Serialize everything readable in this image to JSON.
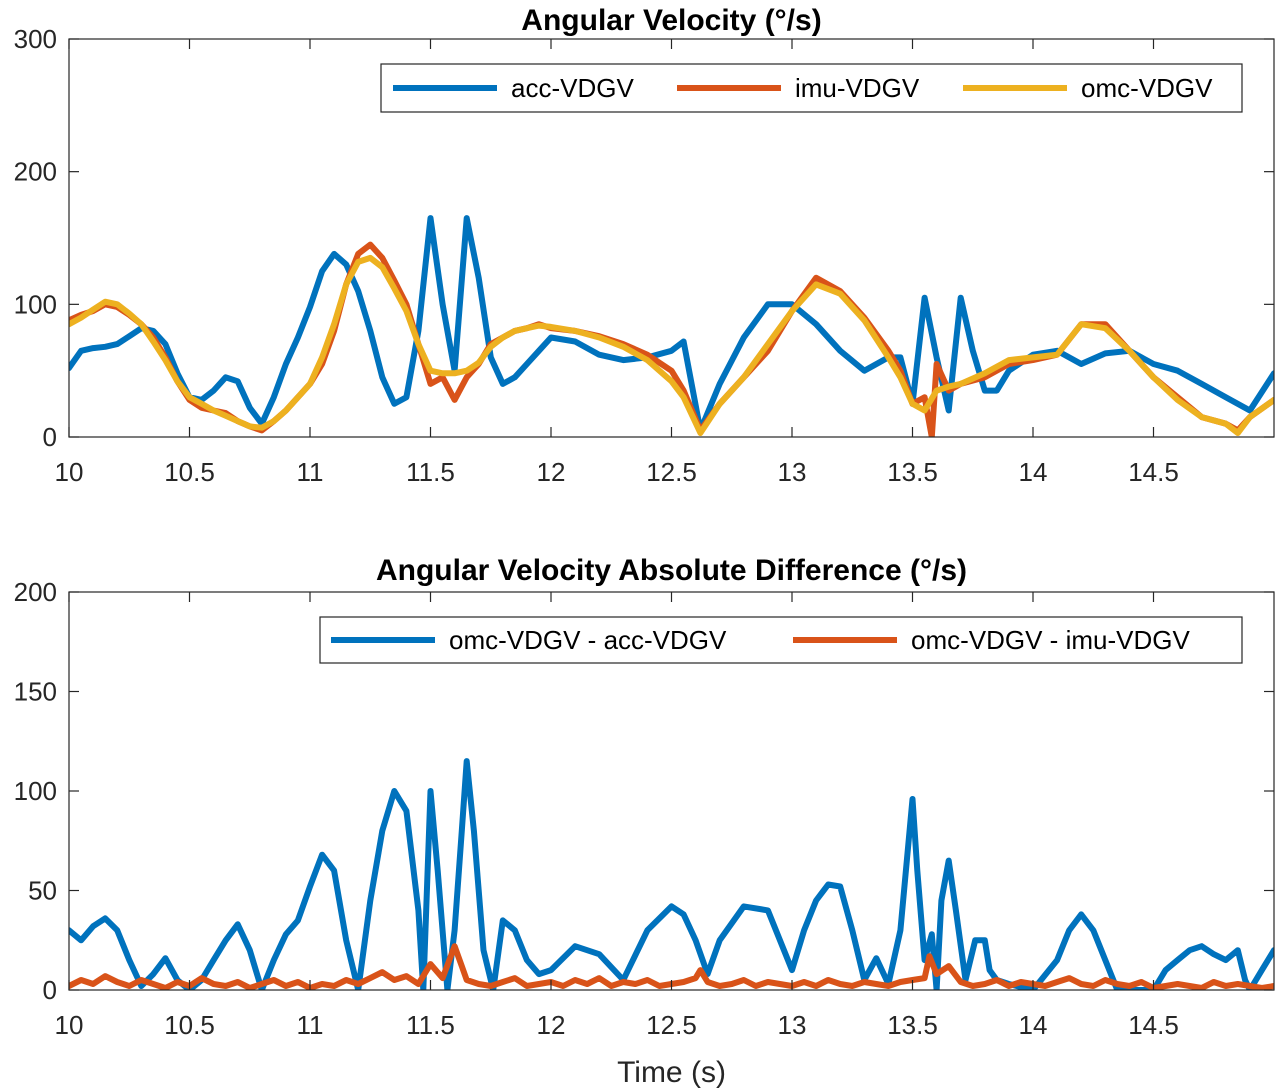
{
  "chart_data": [
    {
      "type": "line",
      "title": "Angular Velocity (°/s)",
      "xlabel": "",
      "ylabel": "",
      "xlim": [
        10,
        15
      ],
      "ylim": [
        0,
        300
      ],
      "xticks": [
        10,
        10.5,
        11,
        11.5,
        12,
        12.5,
        13,
        13.5,
        14,
        14.5
      ],
      "xtick_labels": [
        "10",
        "10.5",
        "11",
        "11.5",
        "12",
        "12.5",
        "13",
        "13.5",
        "14",
        "14.5"
      ],
      "yticks": [
        0,
        100,
        200,
        300
      ],
      "ytick_labels": [
        "0",
        "100",
        "200",
        "300"
      ],
      "grid": false,
      "legend": "top-right, horizontal",
      "series": [
        {
          "name": "acc-VDGV",
          "color": "#0072BD",
          "x": [
            10.0,
            10.05,
            10.1,
            10.15,
            10.2,
            10.25,
            10.3,
            10.35,
            10.4,
            10.45,
            10.5,
            10.55,
            10.6,
            10.65,
            10.7,
            10.75,
            10.8,
            10.85,
            10.9,
            10.95,
            11.0,
            11.05,
            11.1,
            11.15,
            11.2,
            11.25,
            11.3,
            11.35,
            11.4,
            11.45,
            11.5,
            11.55,
            11.6,
            11.65,
            11.7,
            11.75,
            11.8,
            11.85,
            11.9,
            11.95,
            12.0,
            12.1,
            12.2,
            12.3,
            12.4,
            12.5,
            12.55,
            12.62,
            12.7,
            12.8,
            12.9,
            13.0,
            13.1,
            13.2,
            13.3,
            13.4,
            13.45,
            13.5,
            13.55,
            13.6,
            13.65,
            13.7,
            13.75,
            13.8,
            13.85,
            13.9,
            14.0,
            14.1,
            14.2,
            14.3,
            14.4,
            14.5,
            14.6,
            14.7,
            14.8,
            14.9,
            15.0
          ],
          "values": [
            52,
            65,
            67,
            68,
            70,
            76,
            82,
            80,
            70,
            48,
            30,
            28,
            35,
            45,
            42,
            22,
            10,
            30,
            55,
            75,
            98,
            125,
            138,
            130,
            110,
            80,
            45,
            25,
            30,
            80,
            165,
            100,
            50,
            165,
            120,
            60,
            40,
            45,
            55,
            65,
            75,
            72,
            62,
            58,
            60,
            65,
            72,
            5,
            40,
            75,
            100,
            100,
            85,
            65,
            50,
            60,
            60,
            25,
            105,
            60,
            20,
            105,
            65,
            35,
            35,
            50,
            62,
            65,
            55,
            63,
            65,
            55,
            50,
            40,
            30,
            20,
            48
          ]
        },
        {
          "name": "imu-VDGV",
          "color": "#D95319",
          "x": [
            10.0,
            10.05,
            10.1,
            10.15,
            10.2,
            10.25,
            10.3,
            10.35,
            10.4,
            10.45,
            10.5,
            10.55,
            10.6,
            10.65,
            10.7,
            10.75,
            10.8,
            10.85,
            10.9,
            10.95,
            11.0,
            11.05,
            11.1,
            11.15,
            11.2,
            11.25,
            11.3,
            11.35,
            11.4,
            11.45,
            11.5,
            11.55,
            11.6,
            11.65,
            11.7,
            11.75,
            11.8,
            11.85,
            11.9,
            11.95,
            12.0,
            12.1,
            12.2,
            12.3,
            12.4,
            12.5,
            12.55,
            12.62,
            12.7,
            12.8,
            12.9,
            13.0,
            13.1,
            13.2,
            13.3,
            13.4,
            13.45,
            13.5,
            13.55,
            13.58,
            13.6,
            13.65,
            13.7,
            13.8,
            13.9,
            14.0,
            14.1,
            14.2,
            14.3,
            14.4,
            14.5,
            14.6,
            14.7,
            14.8,
            14.85,
            14.9,
            15.0
          ],
          "values": [
            88,
            92,
            95,
            100,
            98,
            92,
            85,
            75,
            60,
            42,
            28,
            22,
            20,
            18,
            12,
            8,
            5,
            12,
            20,
            30,
            40,
            55,
            80,
            115,
            138,
            145,
            135,
            118,
            100,
            70,
            40,
            45,
            28,
            45,
            55,
            70,
            75,
            80,
            82,
            85,
            82,
            80,
            76,
            70,
            62,
            50,
            35,
            5,
            25,
            45,
            65,
            95,
            120,
            110,
            90,
            65,
            50,
            25,
            30,
            0,
            55,
            35,
            40,
            45,
            55,
            58,
            62,
            85,
            85,
            65,
            45,
            30,
            15,
            10,
            5,
            15,
            28
          ]
        },
        {
          "name": "omc-VDGV",
          "color": "#EDB120",
          "x": [
            10.0,
            10.05,
            10.1,
            10.15,
            10.2,
            10.25,
            10.3,
            10.35,
            10.4,
            10.45,
            10.5,
            10.55,
            10.6,
            10.65,
            10.7,
            10.75,
            10.8,
            10.85,
            10.9,
            10.95,
            11.0,
            11.05,
            11.1,
            11.15,
            11.2,
            11.25,
            11.3,
            11.35,
            11.4,
            11.45,
            11.5,
            11.55,
            11.6,
            11.65,
            11.7,
            11.75,
            11.8,
            11.85,
            11.9,
            11.95,
            12.0,
            12.1,
            12.2,
            12.3,
            12.4,
            12.5,
            12.55,
            12.62,
            12.7,
            12.8,
            12.9,
            13.0,
            13.1,
            13.2,
            13.3,
            13.4,
            13.45,
            13.5,
            13.55,
            13.6,
            13.65,
            13.7,
            13.8,
            13.9,
            14.0,
            14.1,
            14.2,
            14.3,
            14.4,
            14.5,
            14.6,
            14.7,
            14.8,
            14.85,
            14.9,
            15.0
          ],
          "values": [
            85,
            90,
            96,
            102,
            100,
            93,
            85,
            72,
            58,
            42,
            30,
            25,
            20,
            16,
            12,
            8,
            7,
            12,
            20,
            30,
            40,
            60,
            85,
            115,
            132,
            135,
            128,
            112,
            95,
            70,
            50,
            48,
            48,
            50,
            56,
            68,
            75,
            80,
            82,
            84,
            83,
            80,
            75,
            68,
            58,
            42,
            30,
            3,
            25,
            45,
            70,
            95,
            115,
            108,
            88,
            60,
            45,
            25,
            20,
            35,
            38,
            40,
            48,
            58,
            60,
            62,
            85,
            82,
            65,
            45,
            28,
            15,
            10,
            3,
            15,
            28
          ]
        }
      ]
    },
    {
      "type": "line",
      "title": "Angular Velocity Absolute Difference (°/s)",
      "xlabel": "Time (s)",
      "ylabel": "",
      "xlim": [
        10,
        15
      ],
      "ylim": [
        0,
        200
      ],
      "xticks": [
        10,
        10.5,
        11,
        11.5,
        12,
        12.5,
        13,
        13.5,
        14,
        14.5
      ],
      "xtick_labels": [
        "10",
        "10.5",
        "11",
        "11.5",
        "12",
        "12.5",
        "13",
        "13.5",
        "14",
        "14.5"
      ],
      "yticks": [
        0,
        50,
        100,
        150,
        200
      ],
      "ytick_labels": [
        "0",
        "50",
        "100",
        "150",
        "200"
      ],
      "grid": false,
      "legend": "top-right, horizontal",
      "series": [
        {
          "name": "omc-VDGV - acc-VDGV",
          "color": "#0072BD",
          "x": [
            10.0,
            10.05,
            10.1,
            10.15,
            10.2,
            10.25,
            10.3,
            10.35,
            10.4,
            10.45,
            10.5,
            10.55,
            10.6,
            10.65,
            10.7,
            10.75,
            10.8,
            10.85,
            10.9,
            10.95,
            11.0,
            11.05,
            11.1,
            11.15,
            11.2,
            11.25,
            11.3,
            11.35,
            11.4,
            11.45,
            11.47,
            11.5,
            11.53,
            11.57,
            11.6,
            11.63,
            11.65,
            11.68,
            11.72,
            11.76,
            11.8,
            11.85,
            11.9,
            11.95,
            12.0,
            12.1,
            12.2,
            12.3,
            12.4,
            12.5,
            12.55,
            12.6,
            12.65,
            12.7,
            12.8,
            12.9,
            13.0,
            13.05,
            13.1,
            13.15,
            13.2,
            13.25,
            13.3,
            13.35,
            13.4,
            13.45,
            13.5,
            13.52,
            13.55,
            13.58,
            13.6,
            13.62,
            13.65,
            13.68,
            13.72,
            13.76,
            13.8,
            13.82,
            13.85,
            13.9,
            14.0,
            14.1,
            14.15,
            14.2,
            14.25,
            14.3,
            14.35,
            14.4,
            14.45,
            14.5,
            14.55,
            14.6,
            14.65,
            14.7,
            14.75,
            14.8,
            14.85,
            14.88,
            14.9,
            14.95,
            15.0
          ],
          "values": [
            30,
            25,
            32,
            36,
            30,
            15,
            2,
            8,
            16,
            5,
            0,
            5,
            15,
            25,
            33,
            20,
            0,
            15,
            28,
            35,
            52,
            68,
            60,
            25,
            0,
            45,
            80,
            100,
            90,
            40,
            0,
            100,
            60,
            0,
            30,
            80,
            115,
            80,
            20,
            0,
            35,
            30,
            15,
            8,
            10,
            22,
            18,
            5,
            30,
            42,
            38,
            25,
            8,
            25,
            42,
            40,
            10,
            30,
            45,
            53,
            52,
            30,
            5,
            16,
            3,
            30,
            96,
            60,
            15,
            28,
            0,
            45,
            65,
            40,
            5,
            25,
            25,
            10,
            5,
            3,
            0,
            15,
            30,
            38,
            30,
            15,
            0,
            0,
            0,
            0,
            10,
            15,
            20,
            22,
            18,
            15,
            20,
            5,
            0,
            10,
            20
          ]
        },
        {
          "name": "omc-VDGV - imu-VDGV",
          "color": "#D95319",
          "x": [
            10.0,
            10.05,
            10.1,
            10.15,
            10.2,
            10.25,
            10.3,
            10.35,
            10.4,
            10.45,
            10.5,
            10.55,
            10.6,
            10.65,
            10.7,
            10.75,
            10.8,
            10.85,
            10.9,
            10.95,
            11.0,
            11.05,
            11.1,
            11.15,
            11.2,
            11.25,
            11.3,
            11.35,
            11.4,
            11.45,
            11.5,
            11.55,
            11.6,
            11.63,
            11.65,
            11.7,
            11.75,
            11.8,
            11.85,
            11.9,
            11.95,
            12.0,
            12.05,
            12.1,
            12.15,
            12.2,
            12.25,
            12.3,
            12.35,
            12.4,
            12.45,
            12.5,
            12.55,
            12.6,
            12.62,
            12.65,
            12.7,
            12.75,
            12.8,
            12.85,
            12.9,
            12.95,
            13.0,
            13.05,
            13.1,
            13.15,
            13.2,
            13.25,
            13.3,
            13.35,
            13.4,
            13.45,
            13.5,
            13.55,
            13.57,
            13.6,
            13.65,
            13.7,
            13.75,
            13.8,
            13.85,
            13.9,
            13.95,
            14.0,
            14.05,
            14.1,
            14.15,
            14.2,
            14.25,
            14.3,
            14.35,
            14.4,
            14.45,
            14.5,
            14.55,
            14.6,
            14.65,
            14.7,
            14.75,
            14.8,
            14.85,
            14.9,
            14.95,
            15.0
          ],
          "values": [
            2,
            5,
            3,
            7,
            4,
            2,
            5,
            3,
            1,
            4,
            2,
            6,
            3,
            2,
            4,
            1,
            3,
            5,
            2,
            4,
            1,
            3,
            2,
            5,
            3,
            6,
            9,
            5,
            7,
            3,
            13,
            6,
            22,
            12,
            5,
            3,
            2,
            4,
            6,
            2,
            3,
            4,
            2,
            5,
            3,
            6,
            2,
            4,
            3,
            5,
            2,
            3,
            4,
            6,
            10,
            4,
            2,
            3,
            5,
            2,
            4,
            3,
            2,
            4,
            2,
            5,
            3,
            2,
            4,
            3,
            2,
            4,
            5,
            6,
            17,
            8,
            12,
            4,
            2,
            3,
            5,
            2,
            4,
            3,
            2,
            4,
            6,
            3,
            2,
            5,
            3,
            2,
            4,
            1,
            2,
            3,
            2,
            1,
            4,
            2,
            3,
            2,
            1,
            2
          ]
        }
      ]
    }
  ]
}
